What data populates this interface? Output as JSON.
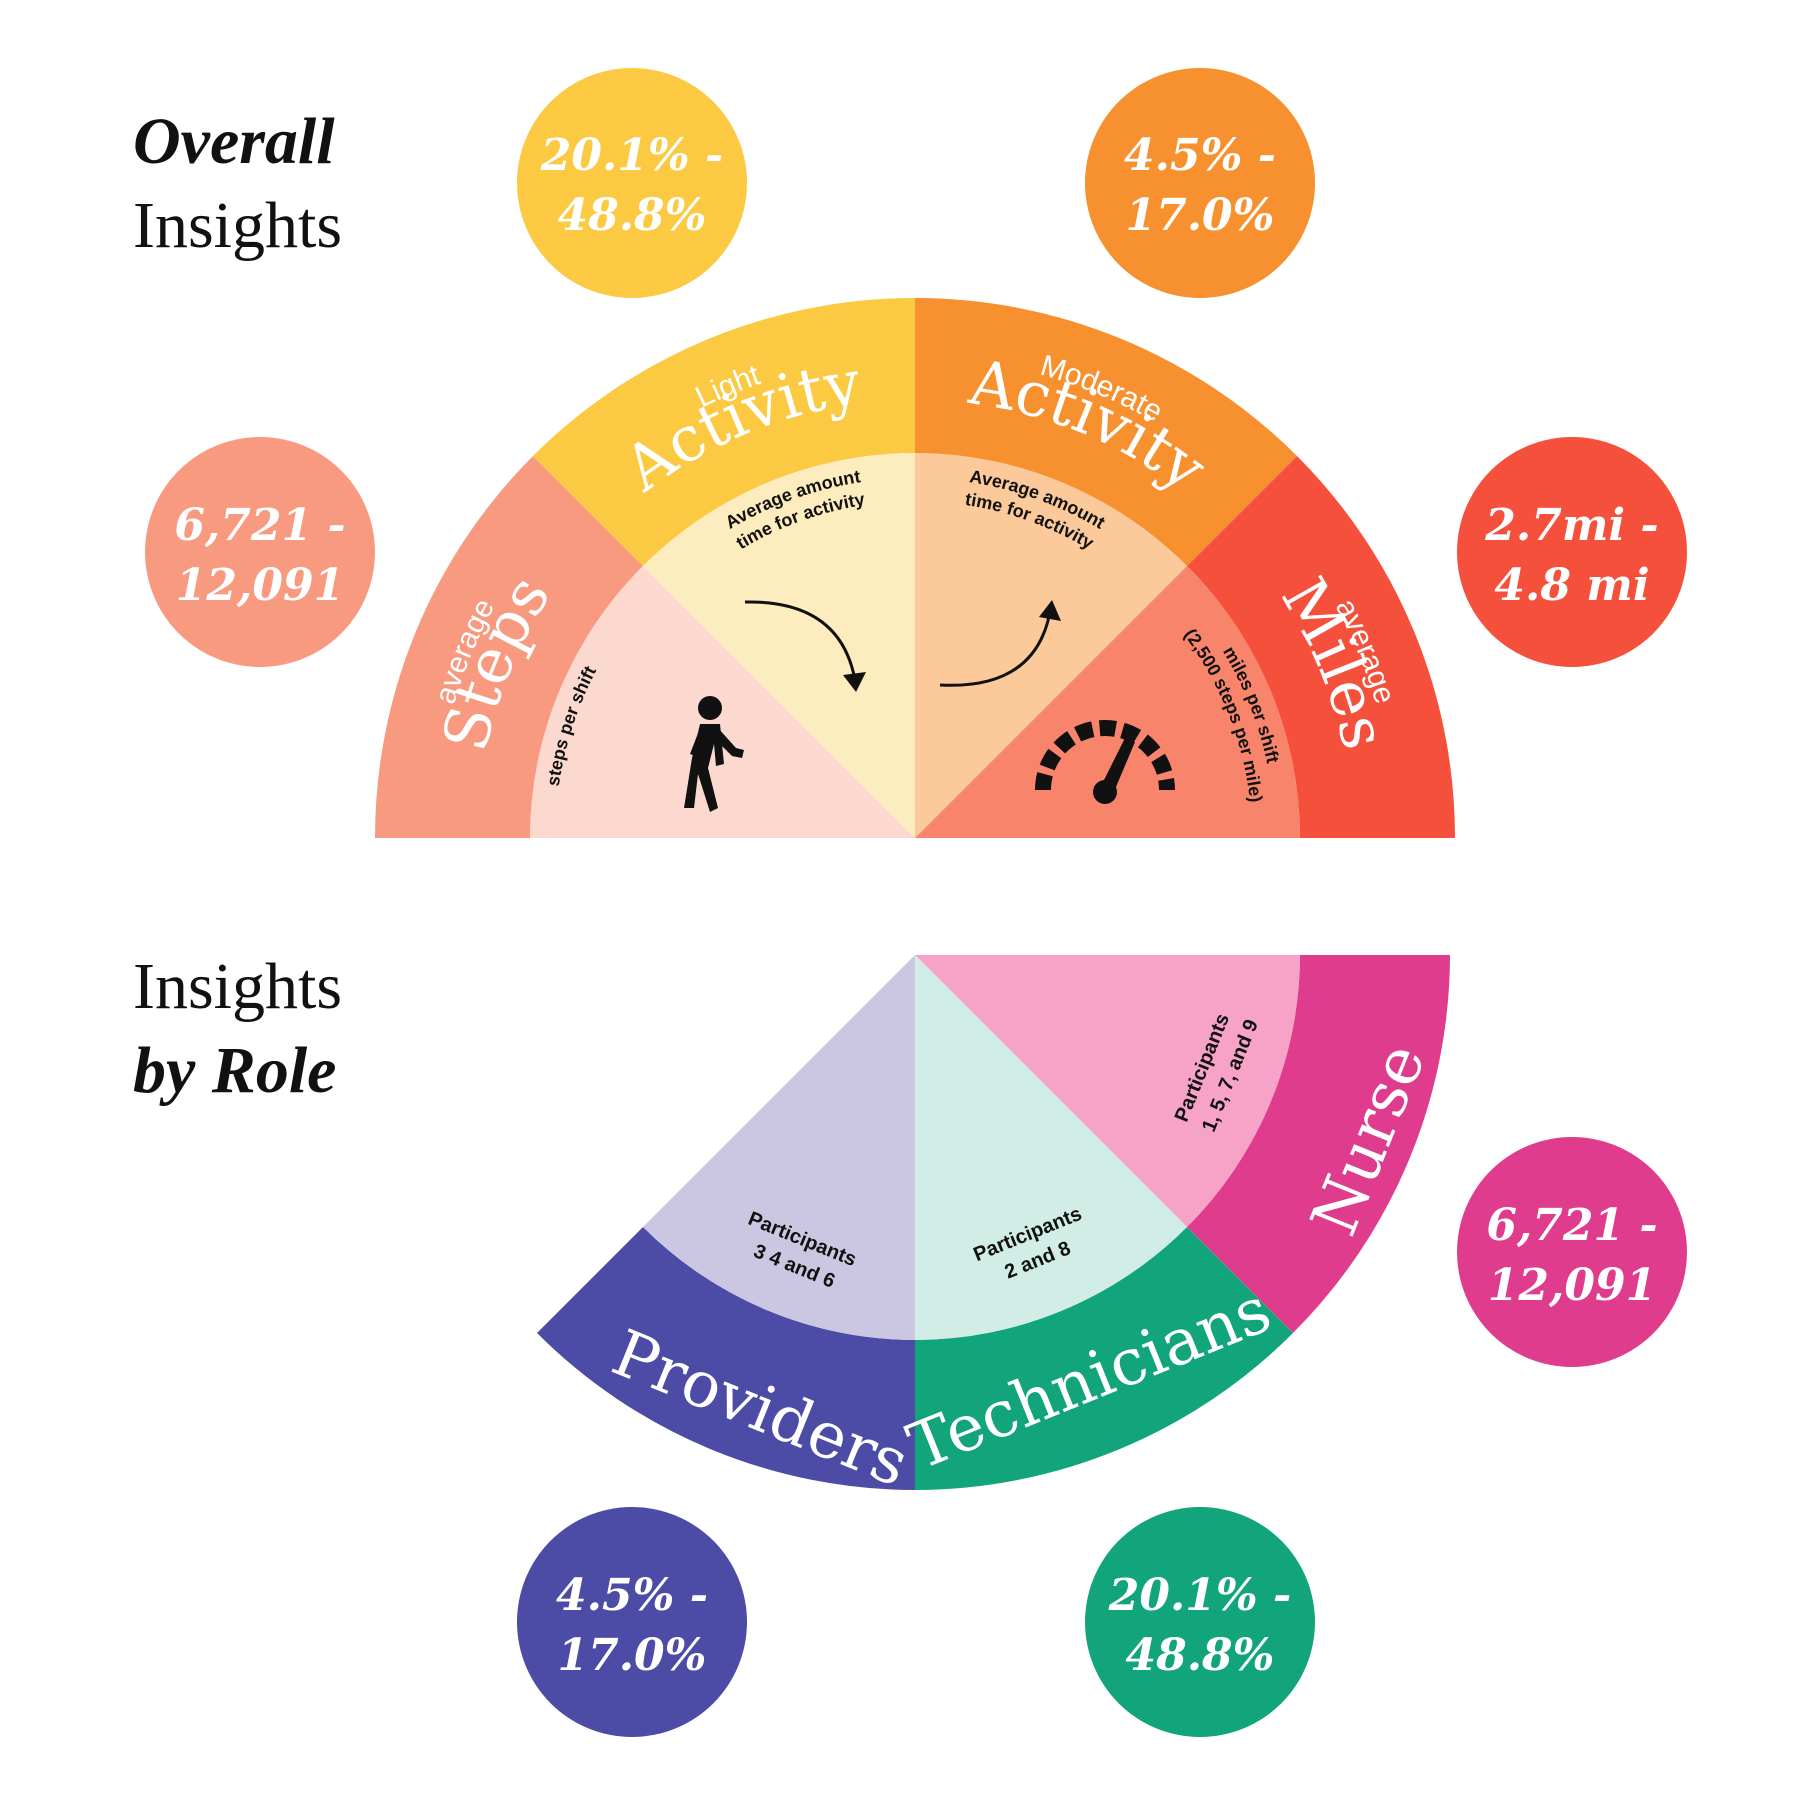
{
  "colors": {
    "steps_outer": "#f79a7f",
    "steps_inner": "#fcd9cf",
    "light_outer": "#fcc943",
    "light_inner": "#fdecbd",
    "moderate_outer": "#f7902f",
    "moderate_inner": "#fbc99a",
    "miles_outer": "#f5503c",
    "miles_inner": "#f8856b",
    "providers_outer": "#4c4ba6",
    "providers_inner": "#cbc6e1",
    "technicians_outer": "#12a57c",
    "technicians_inner": "#d1ede6",
    "nurse_outer": "#df3c8d",
    "nurse_inner": "#f6a3c7",
    "bubble_steps": "#f79a7f",
    "bubble_light": "#fcc943",
    "bubble_moderate": "#f7902f",
    "bubble_miles": "#f5503c",
    "bubble_providers": "#4c4ba6",
    "bubble_technicians": "#12a57c",
    "bubble_nurse": "#df3c8d"
  },
  "overall": {
    "heading_line1": "Overall",
    "heading_line2": "Insights",
    "segments": {
      "steps": {
        "small": "average",
        "big": "Steps",
        "inner": "steps per shift",
        "icon": "walking-person-icon"
      },
      "light": {
        "small": "Light",
        "big": "Activity",
        "inner_line1": "Average amount",
        "inner_line2": "time for activity",
        "icon": "curved-arrow-down-icon"
      },
      "moderate": {
        "small": "Moderate",
        "big": "Activity",
        "inner_line1": "Average amount",
        "inner_line2": "time for activity",
        "icon": "curved-arrow-up-icon"
      },
      "miles": {
        "small": "average",
        "big": "Miles",
        "inner_line1": "miles per shift",
        "inner_line2": "(2,500 steps per mile)",
        "icon": "speedometer-icon"
      }
    },
    "bubbles": {
      "steps": {
        "line1": "6,721 -",
        "line2": "12,091"
      },
      "light": {
        "line1": "20.1% -",
        "line2": "48.8%"
      },
      "moderate": {
        "line1": "4.5% -",
        "line2": "17.0%"
      },
      "miles": {
        "line1": "2.7mi -",
        "line2": "4.8 mi"
      }
    }
  },
  "by_role": {
    "heading_line1": "Insights",
    "heading_line2": "by Role",
    "segments": {
      "providers": {
        "label": "Providers",
        "inner_line1": "Participants",
        "inner_line2": "3 4 and 6"
      },
      "technicians": {
        "label": "Technicians",
        "inner_line1": "Participants",
        "inner_line2": "2 and 8"
      },
      "nurse": {
        "label": "Nurse",
        "inner_line1": "Participants",
        "inner_line2": "1, 5, 7, and 9"
      }
    },
    "bubbles": {
      "nurse": {
        "line1": "6,721 -",
        "line2": "12,091"
      },
      "providers": {
        "line1": "4.5% -",
        "line2": "17.0%"
      },
      "technicians": {
        "line1": "20.1% -",
        "line2": "48.8%"
      }
    }
  }
}
